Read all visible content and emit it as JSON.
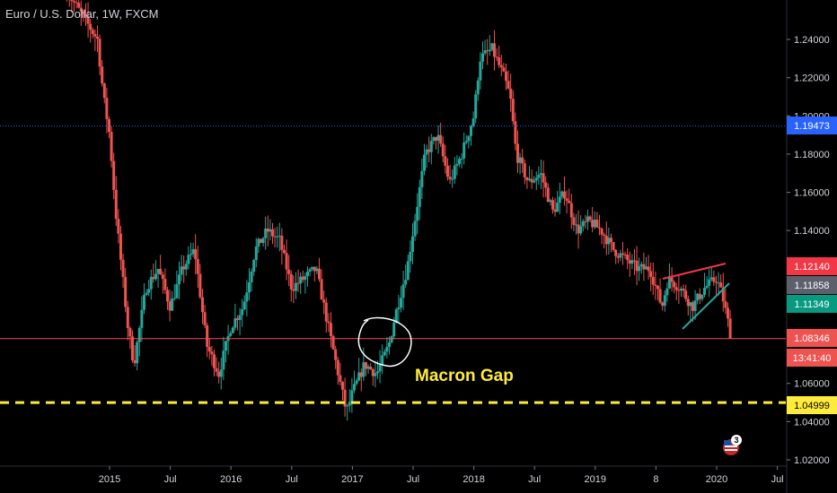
{
  "chart_data": {
    "type": "candlestick",
    "title": "Euro / U.S. Dollar, 1W, FXCM",
    "x_tick_labels": [
      "2015",
      "Jul",
      "2016",
      "Jul",
      "2017",
      "Jul",
      "2018",
      "Jul",
      "2019",
      "8",
      "2020",
      "Jul"
    ],
    "y_ticks": [
      1.02,
      1.04,
      1.06,
      1.1,
      1.12,
      1.14,
      1.16,
      1.18,
      1.2,
      1.22,
      1.24
    ],
    "y_tick_labels": [
      "1.02000",
      "1.04000",
      "1.06000",
      "1.10000",
      "1.12000",
      "1.14000",
      "1.16000",
      "1.18000",
      "1.20000",
      "1.22000",
      "1.24000"
    ],
    "ylim": [
      1.02,
      1.255
    ],
    "grid": false,
    "price_labels": [
      {
        "text": "1.19473",
        "value": 1.19473,
        "color": "#2962ff"
      },
      {
        "text": "1.12140",
        "value": 1.1214,
        "color": "#f23645"
      },
      {
        "text": "1.11858",
        "value": 1.11858,
        "color": "#5d606b"
      },
      {
        "text": "1.11349",
        "value": 1.11349,
        "color": "#089981"
      },
      {
        "text": "1.08346",
        "value": 1.08346,
        "color": "#ef5350"
      },
      {
        "text": "13:41:40",
        "color": "#ef5350"
      },
      {
        "text": "1.04999",
        "value": 1.04999,
        "color": "#ffeb3b"
      }
    ],
    "horizontal_lines": [
      {
        "value": 1.19473,
        "style": "dotted",
        "color": "#2962ff"
      },
      {
        "value": 1.08346,
        "style": "solid",
        "color": "#ef5350"
      },
      {
        "value": 1.04999,
        "style": "dashed",
        "color": "#ffeb3b"
      }
    ],
    "annotation": "Macron Gap",
    "badge_count": "3",
    "colors": {
      "up": "#26a69a",
      "down": "#ef5350",
      "background": "#000000",
      "annotation": "#ffeb3b"
    },
    "series_anchors": [
      [
        2014.65,
        1.265
      ],
      [
        2014.8,
        1.25
      ],
      [
        2014.9,
        1.24
      ],
      [
        2014.95,
        1.21
      ],
      [
        2015.0,
        1.19
      ],
      [
        2015.05,
        1.15
      ],
      [
        2015.1,
        1.12
      ],
      [
        2015.15,
        1.09
      ],
      [
        2015.2,
        1.07
      ],
      [
        2015.3,
        1.11
      ],
      [
        2015.4,
        1.12
      ],
      [
        2015.5,
        1.1
      ],
      [
        2015.6,
        1.12
      ],
      [
        2015.7,
        1.13
      ],
      [
        2015.8,
        1.08
      ],
      [
        2015.9,
        1.065
      ],
      [
        2016.0,
        1.09
      ],
      [
        2016.1,
        1.1
      ],
      [
        2016.2,
        1.13
      ],
      [
        2016.3,
        1.14
      ],
      [
        2016.4,
        1.135
      ],
      [
        2016.5,
        1.11
      ],
      [
        2016.6,
        1.115
      ],
      [
        2016.7,
        1.12
      ],
      [
        2016.8,
        1.09
      ],
      [
        2016.9,
        1.06
      ],
      [
        2016.95,
        1.045
      ],
      [
        2017.0,
        1.055
      ],
      [
        2017.1,
        1.07
      ],
      [
        2017.2,
        1.065
      ],
      [
        2017.3,
        1.08
      ],
      [
        2017.35,
        1.095
      ],
      [
        2017.45,
        1.12
      ],
      [
        2017.55,
        1.16
      ],
      [
        2017.6,
        1.18
      ],
      [
        2017.7,
        1.19
      ],
      [
        2017.8,
        1.165
      ],
      [
        2017.9,
        1.18
      ],
      [
        2018.0,
        1.2
      ],
      [
        2018.05,
        1.23
      ],
      [
        2018.15,
        1.235
      ],
      [
        2018.25,
        1.22
      ],
      [
        2018.3,
        1.21
      ],
      [
        2018.35,
        1.18
      ],
      [
        2018.45,
        1.165
      ],
      [
        2018.55,
        1.17
      ],
      [
        2018.65,
        1.15
      ],
      [
        2018.75,
        1.16
      ],
      [
        2018.85,
        1.14
      ],
      [
        2018.95,
        1.145
      ],
      [
        2019.05,
        1.14
      ],
      [
        2019.15,
        1.13
      ],
      [
        2019.25,
        1.125
      ],
      [
        2019.35,
        1.12
      ],
      [
        2019.45,
        1.12
      ],
      [
        2019.55,
        1.1
      ],
      [
        2019.6,
        1.115
      ],
      [
        2019.7,
        1.11
      ],
      [
        2019.8,
        1.1
      ],
      [
        2019.9,
        1.11
      ],
      [
        2020.0,
        1.115
      ],
      [
        2020.05,
        1.105
      ],
      [
        2020.1,
        1.09
      ],
      [
        2020.12,
        1.0835
      ]
    ]
  }
}
